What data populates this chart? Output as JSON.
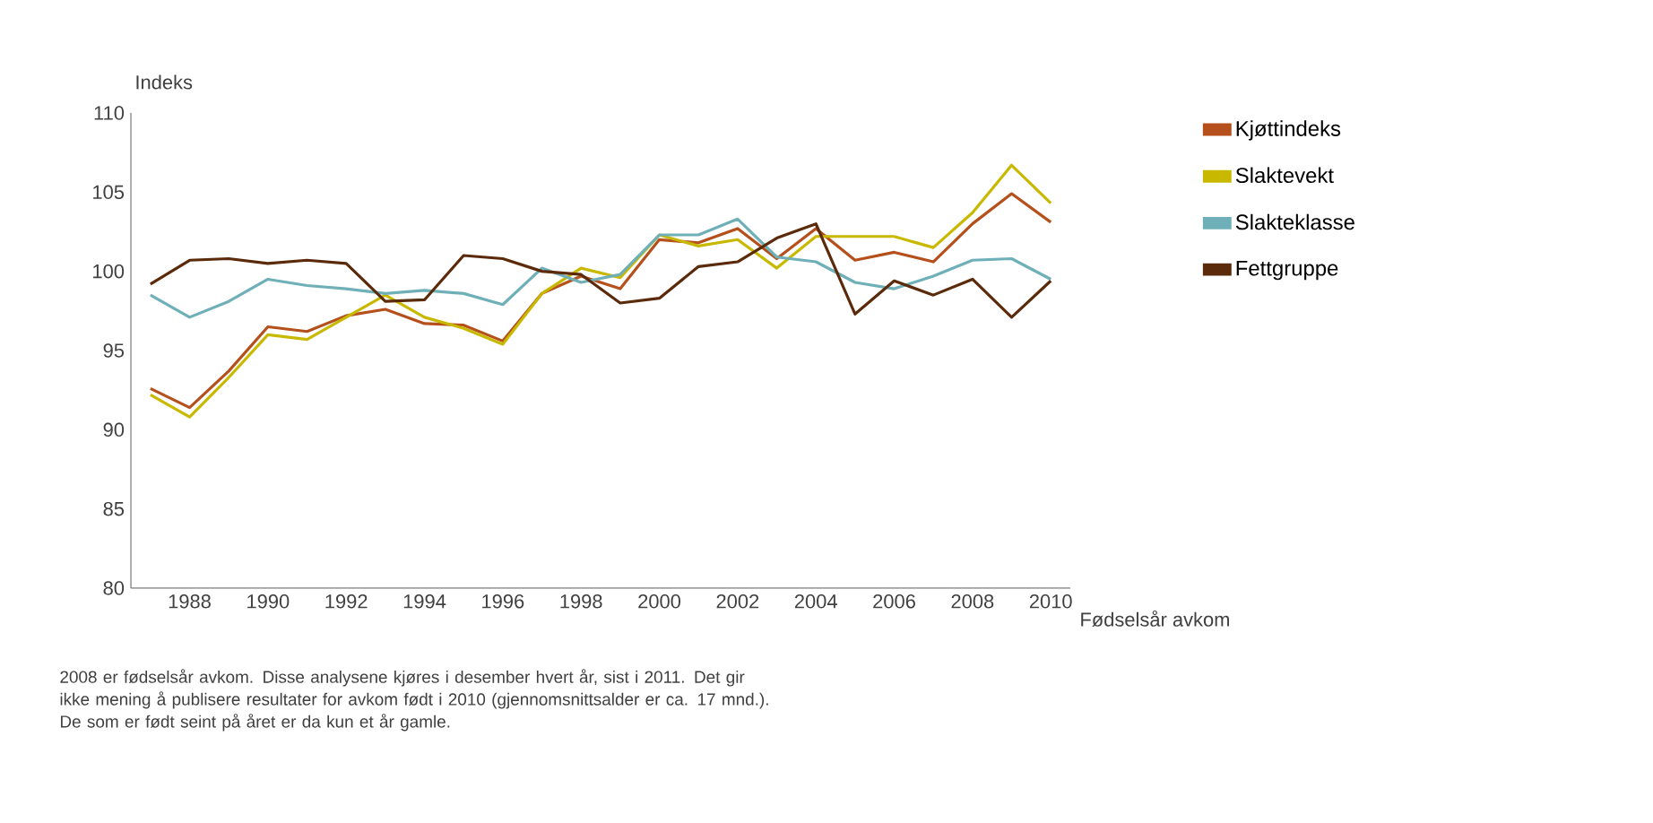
{
  "chart_data": {
    "type": "line",
    "ylabel": "Indeks",
    "xlabel": "Fødselsår avkom",
    "categories": [
      null,
      "1988",
      null,
      "1990",
      null,
      "1992",
      null,
      "1994",
      null,
      "1996",
      null,
      "1998",
      null,
      "2000",
      null,
      "2002",
      null,
      "2004",
      null,
      "2006",
      null,
      "2008",
      null,
      "2010"
    ],
    "series": [
      {
        "name": "Kjøttindeks",
        "color": "#b5501c",
        "values": [
          92.6,
          91.4,
          93.7,
          96.5,
          96.2,
          97.2,
          97.6,
          96.7,
          96.6,
          95.6,
          98.6,
          99.7,
          98.9,
          102.0,
          101.8,
          102.7,
          100.8,
          102.7,
          100.7,
          101.2,
          100.6,
          103.0,
          104.9,
          103.1
        ]
      },
      {
        "name": "Slaktevekt",
        "color": "#c8b900",
        "values": [
          92.2,
          90.8,
          93.3,
          96.0,
          95.7,
          97.1,
          98.5,
          97.1,
          96.4,
          95.4,
          98.6,
          100.2,
          99.6,
          102.3,
          101.6,
          102.0,
          100.2,
          102.2,
          102.2,
          102.2,
          101.5,
          103.7,
          106.7,
          104.3
        ]
      },
      {
        "name": "Slakteklasse",
        "color": "#6fb0b8",
        "values": [
          98.5,
          97.1,
          98.1,
          99.5,
          99.1,
          98.9,
          98.6,
          98.8,
          98.6,
          97.9,
          100.2,
          99.3,
          99.8,
          102.3,
          102.3,
          103.3,
          100.9,
          100.6,
          99.3,
          98.9,
          99.7,
          100.7,
          100.8,
          99.5
        ]
      },
      {
        "name": "Fettgruppe",
        "color": "#5a2a0a",
        "values": [
          99.2,
          100.7,
          100.8,
          100.5,
          100.7,
          100.5,
          98.1,
          98.2,
          101.0,
          100.8,
          100.0,
          99.8,
          98.0,
          98.3,
          100.3,
          100.6,
          102.1,
          103.0,
          97.3,
          99.4,
          98.5,
          99.5,
          97.1,
          99.4
        ]
      }
    ],
    "ylim": [
      80,
      110
    ],
    "yticks": [
      80,
      85,
      90,
      95,
      100,
      105,
      110
    ],
    "legend": "right",
    "grid": false,
    "marker": "none",
    "line_style": "solid",
    "annotations": [
      "2008 er fødselsår avkom. Disse analysene kjøres i desember hvert år, sist i 2011. Det gir ikke mening å publisere resultater for avkom født i 2010 (gjennomsnittsalder er ca. 17 mnd.). De som er født seint på året er da kun et år gamle."
    ]
  }
}
